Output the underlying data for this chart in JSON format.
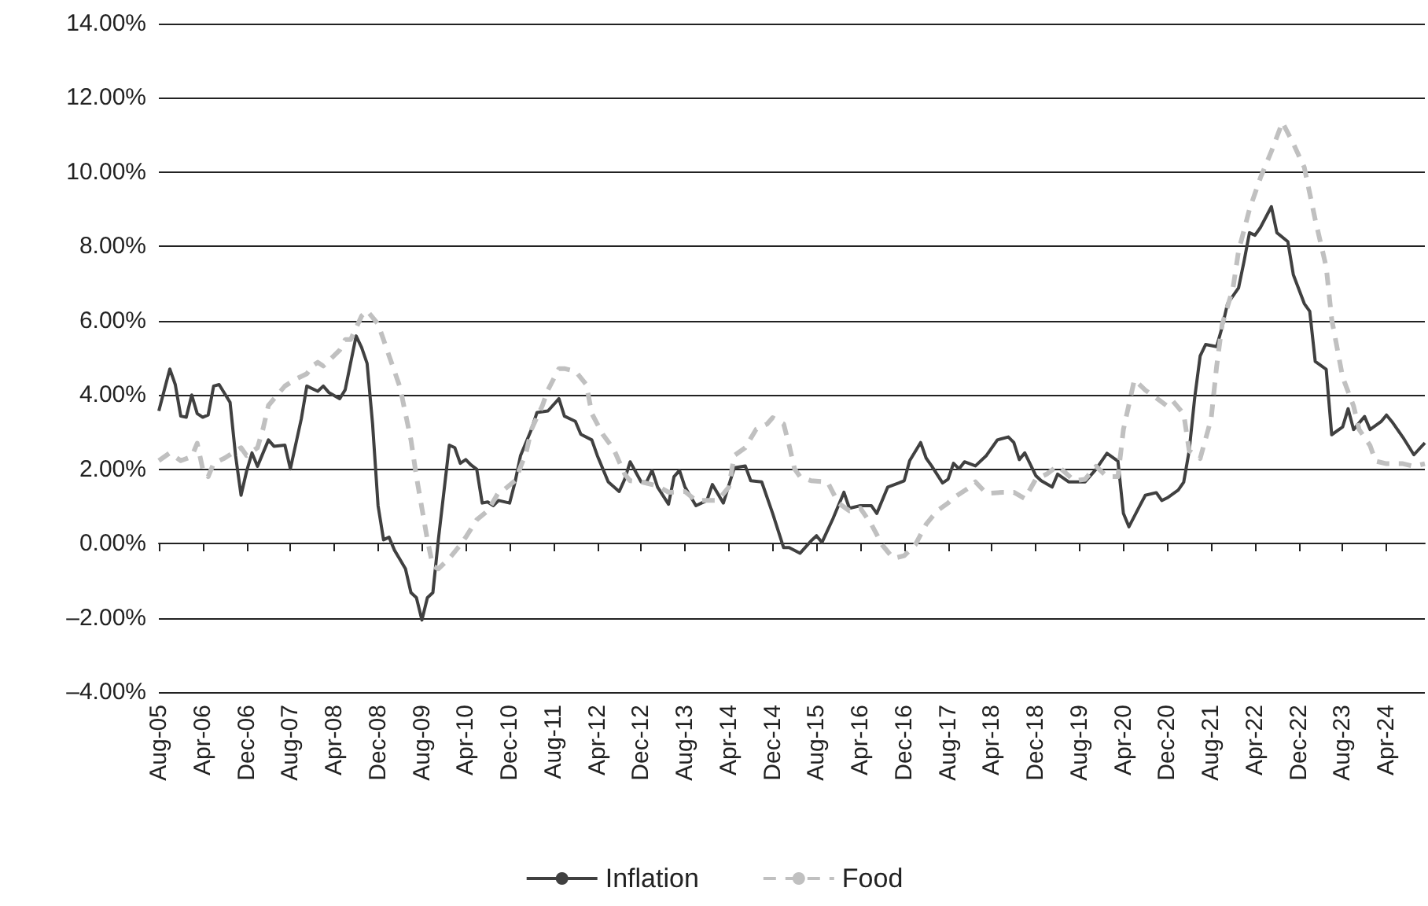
{
  "chart_data": {
    "type": "line",
    "xlim": [
      "2005-08",
      "2024-11"
    ],
    "xticks": [
      {
        "value": "2005-08",
        "label": "Aug-05"
      },
      {
        "value": "2006-04",
        "label": "Apr-06"
      },
      {
        "value": "2006-12",
        "label": "Dec-06"
      },
      {
        "value": "2007-08",
        "label": "Aug-07"
      },
      {
        "value": "2008-04",
        "label": "Apr-08"
      },
      {
        "value": "2008-12",
        "label": "Dec-08"
      },
      {
        "value": "2009-08",
        "label": "Aug-09"
      },
      {
        "value": "2010-04",
        "label": "Apr-10"
      },
      {
        "value": "2010-12",
        "label": "Dec-10"
      },
      {
        "value": "2011-08",
        "label": "Aug-11"
      },
      {
        "value": "2012-04",
        "label": "Apr-12"
      },
      {
        "value": "2012-12",
        "label": "Dec-12"
      },
      {
        "value": "2013-08",
        "label": "Aug-13"
      },
      {
        "value": "2014-04",
        "label": "Apr-14"
      },
      {
        "value": "2014-12",
        "label": "Dec-14"
      },
      {
        "value": "2015-08",
        "label": "Aug-15"
      },
      {
        "value": "2016-04",
        "label": "Apr-16"
      },
      {
        "value": "2016-12",
        "label": "Dec-16"
      },
      {
        "value": "2017-08",
        "label": "Aug-17"
      },
      {
        "value": "2018-04",
        "label": "Apr-18"
      },
      {
        "value": "2018-12",
        "label": "Dec-18"
      },
      {
        "value": "2019-08",
        "label": "Aug-19"
      },
      {
        "value": "2020-04",
        "label": "Apr-20"
      },
      {
        "value": "2020-12",
        "label": "Dec-20"
      },
      {
        "value": "2021-08",
        "label": "Aug-21"
      },
      {
        "value": "2022-04",
        "label": "Apr-22"
      },
      {
        "value": "2022-12",
        "label": "Dec-22"
      },
      {
        "value": "2023-08",
        "label": "Aug-23"
      },
      {
        "value": "2024-04",
        "label": "Apr-24"
      }
    ],
    "ylim": [
      -4,
      14
    ],
    "yticks": [
      {
        "value": -4,
        "label": "–4.00%"
      },
      {
        "value": -2,
        "label": "–2.00%"
      },
      {
        "value": 0,
        "label": "0.00%"
      },
      {
        "value": 2,
        "label": "2.00%"
      },
      {
        "value": 4,
        "label": "4.00%"
      },
      {
        "value": 6,
        "label": "6.00%"
      },
      {
        "value": 8,
        "label": "8.00%"
      },
      {
        "value": 10,
        "label": "10.00%"
      },
      {
        "value": 12,
        "label": "12.00%"
      },
      {
        "value": 14,
        "label": "14.00%"
      }
    ],
    "grid": "y",
    "legend": "bottom",
    "marker": "none",
    "series": [
      {
        "name": "Inflation",
        "color": "#404040",
        "line_style": "solid",
        "x": [
          "2005-08",
          "2005-10",
          "2005-11",
          "2005-12",
          "2006-01",
          "2006-02",
          "2006-03",
          "2006-04",
          "2006-05",
          "2006-06",
          "2006-07",
          "2006-09",
          "2006-10",
          "2006-11",
          "2006-12",
          "2007-01",
          "2007-02",
          "2007-04",
          "2007-05",
          "2007-07",
          "2007-08",
          "2007-10",
          "2007-11",
          "2008-01",
          "2008-02",
          "2008-03",
          "2008-05",
          "2008-06",
          "2008-08",
          "2008-09",
          "2008-10",
          "2008-11",
          "2008-12",
          "2009-01",
          "2009-02",
          "2009-03",
          "2009-05",
          "2009-06",
          "2009-07",
          "2009-08",
          "2009-09",
          "2009-10",
          "2009-11",
          "2010-01",
          "2010-02",
          "2010-03",
          "2010-04",
          "2010-05",
          "2010-06",
          "2010-07",
          "2010-08",
          "2010-09",
          "2010-10",
          "2010-12",
          "2011-01",
          "2011-02",
          "2011-04",
          "2011-05",
          "2011-07",
          "2011-09",
          "2011-10",
          "2011-12",
          "2012-01",
          "2012-03",
          "2012-04",
          "2012-06",
          "2012-08",
          "2012-09",
          "2012-10",
          "2012-12",
          "2013-01",
          "2013-02",
          "2013-03",
          "2013-05",
          "2013-06",
          "2013-07",
          "2013-08",
          "2013-10",
          "2013-12",
          "2014-01",
          "2014-03",
          "2014-05",
          "2014-07",
          "2014-08",
          "2014-10",
          "2014-12",
          "2015-02",
          "2015-03",
          "2015-05",
          "2015-07",
          "2015-08",
          "2015-09",
          "2015-11",
          "2016-01",
          "2016-02",
          "2016-04",
          "2016-06",
          "2016-07",
          "2016-09",
          "2016-11",
          "2016-12",
          "2017-01",
          "2017-03",
          "2017-04",
          "2017-05",
          "2017-07",
          "2017-08",
          "2017-09",
          "2017-10",
          "2017-11",
          "2018-01",
          "2018-03",
          "2018-05",
          "2018-07",
          "2018-08",
          "2018-09",
          "2018-10",
          "2018-12",
          "2019-01",
          "2019-03",
          "2019-04",
          "2019-06",
          "2019-07",
          "2019-09",
          "2019-11",
          "2020-01",
          "2020-03",
          "2020-04",
          "2020-05",
          "2020-07",
          "2020-08",
          "2020-10",
          "2020-11",
          "2020-12",
          "2021-02",
          "2021-03",
          "2021-04",
          "2021-05",
          "2021-06",
          "2021-07",
          "2021-09",
          "2021-10",
          "2021-11",
          "2022-01",
          "2022-02",
          "2022-03",
          "2022-04",
          "2022-05",
          "2022-07",
          "2022-08",
          "2022-10",
          "2022-11",
          "2023-01",
          "2023-02",
          "2023-03",
          "2023-05",
          "2023-06",
          "2023-08",
          "2023-09",
          "2023-10",
          "2023-12",
          "2024-01",
          "2024-03",
          "2024-04",
          "2024-05",
          "2024-07",
          "2024-09",
          "2024-11"
        ],
        "values": [
          3.57,
          4.7,
          4.28,
          3.43,
          3.4,
          4.0,
          3.5,
          3.4,
          3.46,
          4.24,
          4.28,
          3.8,
          2.37,
          1.3,
          1.94,
          2.44,
          2.08,
          2.79,
          2.62,
          2.65,
          2.01,
          3.36,
          4.24,
          4.1,
          4.24,
          4.07,
          3.9,
          4.14,
          5.59,
          5.28,
          4.85,
          3.22,
          1.02,
          0.1,
          0.17,
          -0.18,
          -0.68,
          -1.32,
          -1.46,
          -2.06,
          -1.46,
          -1.32,
          0.1,
          2.65,
          2.58,
          2.16,
          2.26,
          2.11,
          2.0,
          1.09,
          1.12,
          1.02,
          1.16,
          1.09,
          1.66,
          2.37,
          3.08,
          3.53,
          3.57,
          3.9,
          3.43,
          3.29,
          2.94,
          2.79,
          2.37,
          1.66,
          1.4,
          1.73,
          2.2,
          1.66,
          1.66,
          1.97,
          1.52,
          1.06,
          1.8,
          1.97,
          1.52,
          1.02,
          1.16,
          1.59,
          1.09,
          2.04,
          2.09,
          1.69,
          1.66,
          0.81,
          -0.11,
          -0.11,
          -0.26,
          0.07,
          0.21,
          0.03,
          0.67,
          1.38,
          0.95,
          1.02,
          1.02,
          0.81,
          1.52,
          1.63,
          1.69,
          2.23,
          2.72,
          2.3,
          2.09,
          1.63,
          1.73,
          2.16,
          2.01,
          2.2,
          2.09,
          2.37,
          2.79,
          2.87,
          2.72,
          2.26,
          2.44,
          1.83,
          1.69,
          1.52,
          1.87,
          1.66,
          1.66,
          1.66,
          2.0,
          2.43,
          2.22,
          0.81,
          0.45,
          1.02,
          1.3,
          1.37,
          1.16,
          1.23,
          1.44,
          1.65,
          2.5,
          3.92,
          5.05,
          5.36,
          5.3,
          5.82,
          6.46,
          6.88,
          7.59,
          8.37,
          8.3,
          8.51,
          9.07,
          8.37,
          8.13,
          7.24,
          6.46,
          6.25,
          4.9,
          4.69,
          2.93,
          3.14,
          3.63,
          3.07,
          3.42,
          3.07,
          3.28,
          3.46,
          3.28,
          2.86,
          2.39,
          2.71
        ]
      },
      {
        "name": "Food",
        "color": "#c0c0c0",
        "line_style": "dashed",
        "x": [
          "2005-08",
          "2005-10",
          "2005-12",
          "2006-02",
          "2006-03",
          "2006-04",
          "2006-05",
          "2006-06",
          "2006-08",
          "2006-11",
          "2006-12",
          "2007-02",
          "2007-03",
          "2007-04",
          "2007-06",
          "2007-07",
          "2007-09",
          "2007-11",
          "2007-12",
          "2008-01",
          "2008-02",
          "2008-03",
          "2008-05",
          "2008-06",
          "2008-07",
          "2008-09",
          "2008-10",
          "2008-12",
          "2009-02",
          "2009-04",
          "2009-06",
          "2009-07",
          "2009-09",
          "2009-10",
          "2009-11",
          "2010-01",
          "2010-03",
          "2010-04",
          "2010-06",
          "2010-08",
          "2010-10",
          "2010-11",
          "2011-01",
          "2011-03",
          "2011-04",
          "2011-06",
          "2011-07",
          "2011-09",
          "2011-10",
          "2011-12",
          "2012-02",
          "2012-03",
          "2012-05",
          "2012-07",
          "2012-09",
          "2012-10",
          "2012-12",
          "2013-03",
          "2013-05",
          "2013-08",
          "2013-10",
          "2013-12",
          "2014-02",
          "2014-04",
          "2014-05",
          "2014-07",
          "2014-09",
          "2014-11",
          "2014-12",
          "2015-02",
          "2015-03",
          "2015-04",
          "2015-05",
          "2015-07",
          "2015-10",
          "2015-12",
          "2016-02",
          "2016-04",
          "2016-06",
          "2016-08",
          "2016-10",
          "2016-12",
          "2017-02",
          "2017-04",
          "2017-06",
          "2017-08",
          "2017-09",
          "2017-12",
          "2018-01",
          "2018-03",
          "2018-06",
          "2018-08",
          "2018-10",
          "2018-12",
          "2019-02",
          "2019-04",
          "2019-06",
          "2019-07",
          "2019-09",
          "2019-11",
          "2020-01",
          "2020-03",
          "2020-04",
          "2020-06",
          "2020-08",
          "2020-10",
          "2020-12",
          "2021-01",
          "2021-03",
          "2021-04",
          "2021-06",
          "2021-08",
          "2021-09",
          "2021-10",
          "2021-12",
          "2022-01",
          "2022-03",
          "2022-05",
          "2022-07",
          "2022-09",
          "2022-11",
          "2023-01",
          "2023-03",
          "2023-05",
          "2023-06",
          "2023-08",
          "2023-10",
          "2023-11",
          "2024-01",
          "2024-02",
          "2024-04",
          "2024-07",
          "2024-09",
          "2024-11"
        ],
        "values": [
          2.23,
          2.44,
          2.23,
          2.34,
          2.7,
          2.01,
          1.8,
          2.16,
          2.3,
          2.58,
          2.37,
          2.58,
          3.08,
          3.72,
          4.07,
          4.24,
          4.43,
          4.57,
          4.78,
          4.88,
          4.78,
          4.92,
          5.21,
          5.49,
          5.49,
          6.13,
          6.27,
          5.91,
          5.06,
          4.21,
          2.79,
          1.8,
          0.1,
          -0.61,
          -0.68,
          -0.4,
          -0.04,
          0.17,
          0.64,
          0.88,
          1.38,
          1.45,
          1.69,
          2.44,
          3.08,
          3.72,
          4.14,
          4.71,
          4.71,
          4.64,
          4.28,
          3.5,
          2.94,
          2.54,
          1.87,
          1.69,
          1.66,
          1.55,
          1.38,
          1.4,
          1.16,
          1.16,
          1.16,
          1.52,
          2.37,
          2.58,
          3.08,
          3.22,
          3.39,
          3.22,
          2.65,
          2.01,
          1.8,
          1.69,
          1.66,
          1.09,
          0.88,
          0.95,
          0.52,
          -0.04,
          -0.4,
          -0.33,
          -0.04,
          0.52,
          0.88,
          1.09,
          1.23,
          1.52,
          1.66,
          1.35,
          1.38,
          1.38,
          1.21,
          1.73,
          1.87,
          2.09,
          1.83,
          1.69,
          1.73,
          2.08,
          1.8,
          1.8,
          3.07,
          4.41,
          4.13,
          3.92,
          3.7,
          3.84,
          3.49,
          2.5,
          2.29,
          3.35,
          4.76,
          5.89,
          6.88,
          7.87,
          9.0,
          9.85,
          10.56,
          11.34,
          10.77,
          10.13,
          8.72,
          7.45,
          6.04,
          4.48,
          3.7,
          3.07,
          2.64,
          2.22,
          2.15,
          2.15,
          2.08,
          2.15
        ]
      }
    ]
  }
}
